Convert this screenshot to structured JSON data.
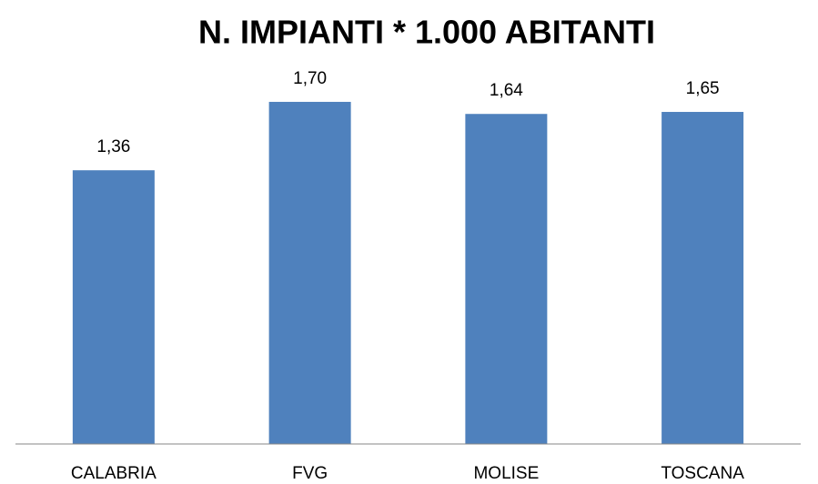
{
  "chart_data": {
    "type": "bar",
    "title": "N. IMPIANTI * 1.000 ABITANTI",
    "categories": [
      "CALABRIA",
      "FVG",
      "MOLISE",
      "TOSCANA"
    ],
    "values": [
      1.36,
      1.7,
      1.64,
      1.65
    ],
    "value_labels": [
      "1,36",
      "1,70",
      "1,64",
      "1,65"
    ],
    "color": "#4f81bd"
  }
}
